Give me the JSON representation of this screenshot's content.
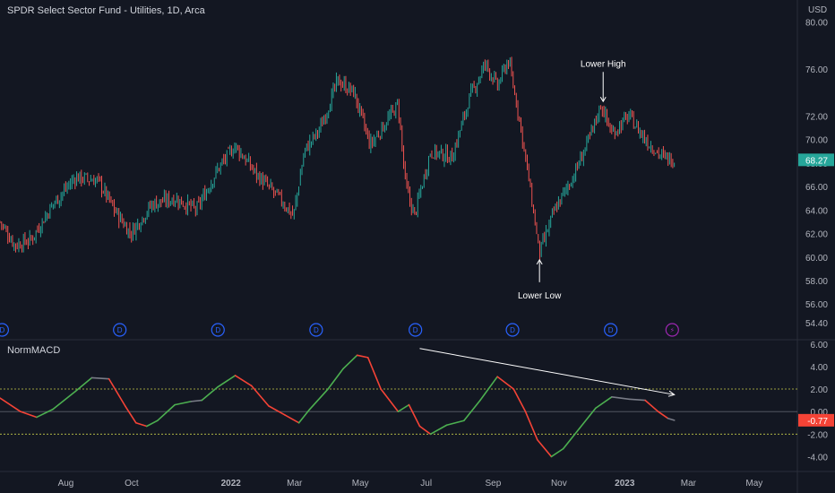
{
  "header": {
    "title": "SPDR Select Sector Fund - Utilities, 1D, Arca",
    "currency": "USD"
  },
  "indicator": {
    "name": "NormMACD",
    "current_label": "-0.77"
  },
  "colors": {
    "up": "#26a69a",
    "down": "#ef5350",
    "macd_up": "#4caf50",
    "macd_down": "#f44336",
    "macd_neutral": "#787b86",
    "band": "#c5cc4a",
    "annotation": "#ffffff",
    "dividend": "#2962ff",
    "split": "#9c27b0"
  },
  "chart_data": [
    {
      "type": "candlestick",
      "title": "SPDR Select Sector Fund - Utilities, 1D, Arca",
      "y_tick_labels": [
        "54.40",
        "56.00",
        "58.00",
        "60.00",
        "62.00",
        "64.00",
        "66.00",
        "68.00",
        "70.00",
        "72.00",
        "76.00",
        "80.00"
      ],
      "ylim": [
        53.5,
        80.5
      ],
      "x_tick_labels": [
        "Aug",
        "Oct",
        "2022",
        "Mar",
        "May",
        "Jul",
        "Sep",
        "Nov",
        "2023",
        "Mar",
        "May"
      ],
      "x_ticks": [
        "2021-08-01",
        "2021-10-01",
        "2022-01-01",
        "2022-03-01",
        "2022-05-01",
        "2022-07-01",
        "2022-09-01",
        "2022-11-01",
        "2023-01-01",
        "2023-03-01",
        "2023-05-01"
      ],
      "xlim": [
        "2021-06-01",
        "2023-06-10"
      ],
      "last_price": "68.27",
      "close_path": [
        [
          "2021-06-01",
          63.0
        ],
        [
          "2021-06-15",
          61.0
        ],
        [
          "2021-06-30",
          61.5
        ],
        [
          "2021-07-20",
          64.5
        ],
        [
          "2021-08-10",
          66.8
        ],
        [
          "2021-08-31",
          66.5
        ],
        [
          "2021-09-15",
          64.0
        ],
        [
          "2021-09-30",
          62.0
        ],
        [
          "2021-10-20",
          64.5
        ],
        [
          "2021-11-10",
          65.0
        ],
        [
          "2021-11-30",
          64.0
        ],
        [
          "2021-12-20",
          67.5
        ],
        [
          "2022-01-05",
          69.5
        ],
        [
          "2022-01-25",
          67.0
        ],
        [
          "2022-02-15",
          65.0
        ],
        [
          "2022-02-28",
          63.5
        ],
        [
          "2022-03-10",
          69.0
        ],
        [
          "2022-03-25",
          71.0
        ],
        [
          "2022-04-10",
          75.0
        ],
        [
          "2022-04-25",
          74.0
        ],
        [
          "2022-05-10",
          69.5
        ],
        [
          "2022-05-25",
          71.5
        ],
        [
          "2022-06-05",
          73.0
        ],
        [
          "2022-06-12",
          66.0
        ],
        [
          "2022-06-20",
          63.5
        ],
        [
          "2022-07-05",
          69.0
        ],
        [
          "2022-07-25",
          68.5
        ],
        [
          "2022-08-10",
          73.5
        ],
        [
          "2022-08-25",
          76.5
        ],
        [
          "2022-09-05",
          74.5
        ],
        [
          "2022-09-15",
          76.8
        ],
        [
          "2022-09-25",
          72.0
        ],
        [
          "2022-10-05",
          66.0
        ],
        [
          "2022-10-14",
          60.3
        ],
        [
          "2022-10-28",
          64.0
        ],
        [
          "2022-11-15",
          67.0
        ],
        [
          "2022-12-01",
          70.5
        ],
        [
          "2022-12-10",
          73.0
        ],
        [
          "2022-12-20",
          70.5
        ],
        [
          "2023-01-05",
          72.0
        ],
        [
          "2023-01-20",
          70.0
        ],
        [
          "2023-02-05",
          68.5
        ],
        [
          "2023-02-16",
          68.27
        ]
      ],
      "annotations": [
        {
          "text": "Lower High",
          "date": "2022-12-12",
          "price": 72.7,
          "direction": "down"
        },
        {
          "text": "Lower Low",
          "date": "2022-10-14",
          "price": 60.3,
          "direction": "up"
        }
      ],
      "events": [
        {
          "label": "D",
          "date": "2021-06-03",
          "kind": "dividend"
        },
        {
          "label": "D",
          "date": "2021-09-20",
          "kind": "dividend"
        },
        {
          "label": "D",
          "date": "2021-12-20",
          "kind": "dividend"
        },
        {
          "label": "D",
          "date": "2022-03-21",
          "kind": "dividend"
        },
        {
          "label": "D",
          "date": "2022-06-21",
          "kind": "dividend"
        },
        {
          "label": "D",
          "date": "2022-09-19",
          "kind": "dividend"
        },
        {
          "label": "D",
          "date": "2022-12-19",
          "kind": "dividend"
        },
        {
          "label": "⚡",
          "date": "2023-02-14",
          "kind": "split"
        }
      ]
    },
    {
      "type": "line",
      "title": "NormMACD",
      "y_tick_labels": [
        "-4.00",
        "-2.00",
        "0.00",
        "2.00",
        "4.00",
        "6.00"
      ],
      "ylim": [
        -5.0,
        6.3
      ],
      "bands": [
        2.0,
        -2.0
      ],
      "zero": 0.0,
      "xlim": [
        "2021-06-01",
        "2023-06-10"
      ],
      "points": [
        [
          "2021-06-01",
          1.2
        ],
        [
          "2021-06-20",
          0.0
        ],
        [
          "2021-07-05",
          -0.5
        ],
        [
          "2021-07-20",
          0.2
        ],
        [
          "2021-08-10",
          1.8
        ],
        [
          "2021-08-25",
          3.0
        ],
        [
          "2021-09-10",
          2.9
        ],
        [
          "2021-09-25",
          0.5
        ],
        [
          "2021-10-05",
          -1.0
        ],
        [
          "2021-10-15",
          -1.3
        ],
        [
          "2021-10-25",
          -0.8
        ],
        [
          "2021-11-10",
          0.6
        ],
        [
          "2021-11-25",
          0.9
        ],
        [
          "2021-12-05",
          1.0
        ],
        [
          "2021-12-20",
          2.2
        ],
        [
          "2022-01-05",
          3.2
        ],
        [
          "2022-01-20",
          2.3
        ],
        [
          "2022-02-05",
          0.5
        ],
        [
          "2022-02-20",
          -0.3
        ],
        [
          "2022-03-05",
          -1.0
        ],
        [
          "2022-03-15",
          0.2
        ],
        [
          "2022-04-01",
          2.0
        ],
        [
          "2022-04-15",
          3.8
        ],
        [
          "2022-04-28",
          5.0
        ],
        [
          "2022-05-08",
          4.8
        ],
        [
          "2022-05-20",
          2.0
        ],
        [
          "2022-06-05",
          0.0
        ],
        [
          "2022-06-15",
          0.6
        ],
        [
          "2022-06-25",
          -1.3
        ],
        [
          "2022-07-05",
          -2.0
        ],
        [
          "2022-07-20",
          -1.2
        ],
        [
          "2022-08-05",
          -0.8
        ],
        [
          "2022-08-20",
          1.0
        ],
        [
          "2022-09-05",
          3.1
        ],
        [
          "2022-09-20",
          2.0
        ],
        [
          "2022-10-01",
          0.0
        ],
        [
          "2022-10-12",
          -2.5
        ],
        [
          "2022-10-25",
          -4.0
        ],
        [
          "2022-11-05",
          -3.3
        ],
        [
          "2022-11-20",
          -1.5
        ],
        [
          "2022-12-05",
          0.3
        ],
        [
          "2022-12-20",
          1.3
        ],
        [
          "2023-01-05",
          1.1
        ],
        [
          "2023-01-20",
          1.0
        ],
        [
          "2023-02-01",
          0.0
        ],
        [
          "2023-02-10",
          -0.6
        ],
        [
          "2023-02-16",
          -0.77
        ]
      ],
      "trendline": [
        [
          "2022-06-25",
          5.6
        ],
        [
          "2023-02-16",
          1.5
        ]
      ]
    }
  ]
}
